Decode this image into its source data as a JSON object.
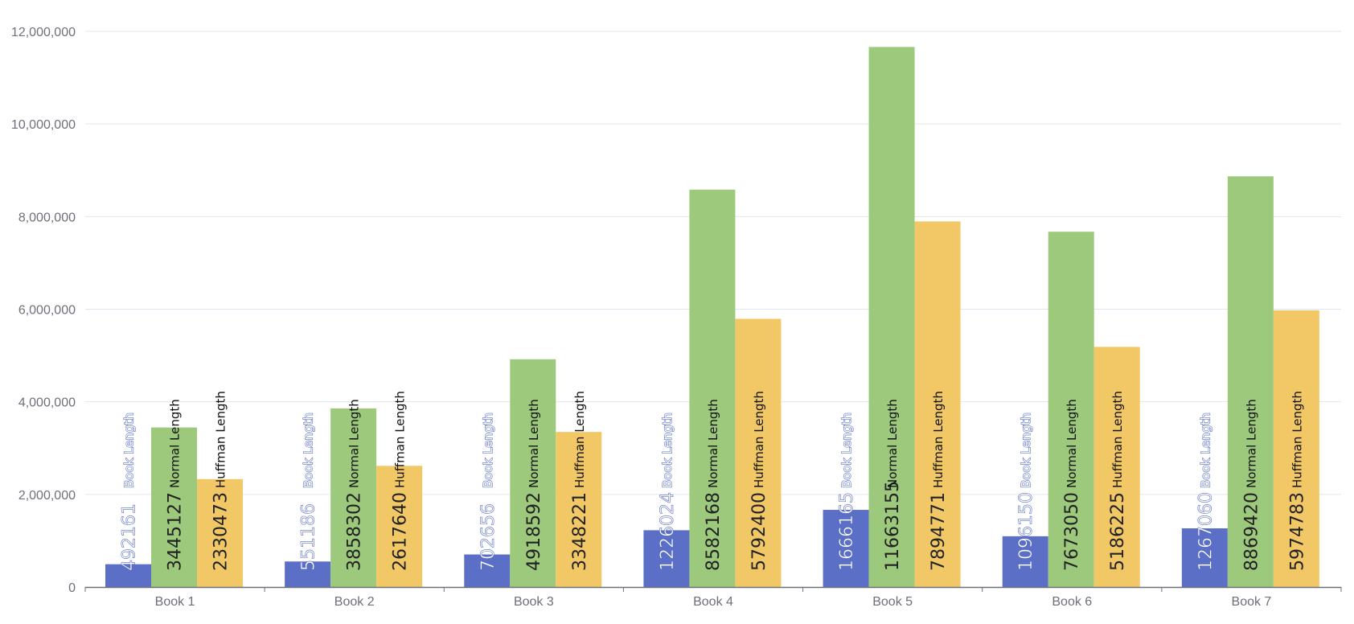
{
  "chart_data": {
    "type": "bar",
    "title": "",
    "xlabel": "",
    "ylabel": "",
    "ylim": [
      0,
      12000000
    ],
    "yticks": [
      0,
      2000000,
      4000000,
      6000000,
      8000000,
      10000000,
      12000000
    ],
    "ytick_labels": [
      "0",
      "2,000,000",
      "4,000,000",
      "6,000,000",
      "8,000,000",
      "10,000,000",
      "12,000,000"
    ],
    "grid": true,
    "categories": [
      "Book 1",
      "Book 2",
      "Book 3",
      "Book 4",
      "Book 5",
      "Book 6",
      "Book 7"
    ],
    "series": [
      {
        "name": "Book Length",
        "color": "#5a6fc5",
        "values": [
          492161,
          551186,
          702656,
          1226024,
          1666165,
          1096150,
          1267060
        ]
      },
      {
        "name": "Normal Length",
        "color": "#9cc97c",
        "values": [
          3445127,
          3858302,
          4918592,
          8582168,
          11663155,
          7673050,
          8869420
        ]
      },
      {
        "name": "Huffman Length",
        "color": "#f2c867",
        "values": [
          2330473,
          2617640,
          3348221,
          5792400,
          7894771,
          5186225,
          5974783
        ]
      }
    ]
  }
}
